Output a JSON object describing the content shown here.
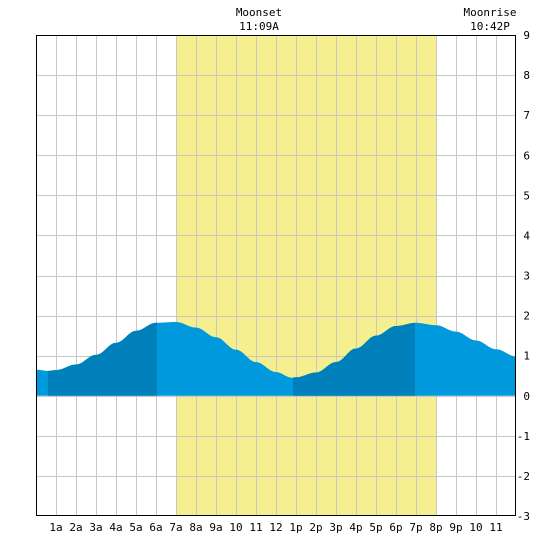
{
  "chart_data": {
    "type": "area",
    "title": "",
    "xlabel": "",
    "ylabel": "",
    "x_unit": "hour of day",
    "xlim": [
      0,
      24
    ],
    "ylim": [
      -3,
      9
    ],
    "grid": true,
    "x_ticks": [
      {
        "x": 1,
        "label": "1a"
      },
      {
        "x": 2,
        "label": "2a"
      },
      {
        "x": 3,
        "label": "3a"
      },
      {
        "x": 4,
        "label": "4a"
      },
      {
        "x": 5,
        "label": "5a"
      },
      {
        "x": 6,
        "label": "6a"
      },
      {
        "x": 7,
        "label": "7a"
      },
      {
        "x": 8,
        "label": "8a"
      },
      {
        "x": 9,
        "label": "9a"
      },
      {
        "x": 10,
        "label": "10"
      },
      {
        "x": 11,
        "label": "11"
      },
      {
        "x": 12,
        "label": "12"
      },
      {
        "x": 13,
        "label": "1p"
      },
      {
        "x": 14,
        "label": "2p"
      },
      {
        "x": 15,
        "label": "3p"
      },
      {
        "x": 16,
        "label": "4p"
      },
      {
        "x": 17,
        "label": "5p"
      },
      {
        "x": 18,
        "label": "6p"
      },
      {
        "x": 19,
        "label": "7p"
      },
      {
        "x": 20,
        "label": "8p"
      },
      {
        "x": 21,
        "label": "9p"
      },
      {
        "x": 22,
        "label": "10"
      },
      {
        "x": 23,
        "label": "11"
      }
    ],
    "y_ticks": [
      -3,
      -2,
      -1,
      0,
      1,
      2,
      3,
      4,
      5,
      6,
      7,
      8,
      9
    ],
    "daylight": {
      "start": 7,
      "end": 20
    },
    "dark_bands": [
      [
        0.6,
        6.05
      ],
      [
        12.85,
        18.95
      ]
    ],
    "events": [
      {
        "title": "Moonset",
        "time": "11:09A",
        "x": 11.15
      },
      {
        "title": "Moonrise",
        "time": "10:42P",
        "x": 22.7
      }
    ],
    "series": [
      {
        "x": [
          0,
          0.6,
          1,
          2,
          3,
          4,
          5,
          6,
          7,
          8,
          9,
          10,
          11,
          12,
          12.8,
          13,
          14,
          15,
          16,
          17,
          18,
          19,
          20,
          21,
          22,
          23,
          24
        ],
        "y": [
          0.65,
          0.62,
          0.64,
          0.78,
          1.02,
          1.32,
          1.62,
          1.82,
          1.84,
          1.7,
          1.46,
          1.15,
          0.84,
          0.59,
          0.45,
          0.46,
          0.58,
          0.84,
          1.18,
          1.5,
          1.74,
          1.82,
          1.76,
          1.6,
          1.38,
          1.16,
          0.98
        ]
      }
    ]
  },
  "colors": {
    "background": "#ffffff",
    "grid": "#c8c8c8",
    "border": "#000000",
    "daylight": "#f5ef8f",
    "water": "#0099dd",
    "water_dark": "#0080bb"
  }
}
